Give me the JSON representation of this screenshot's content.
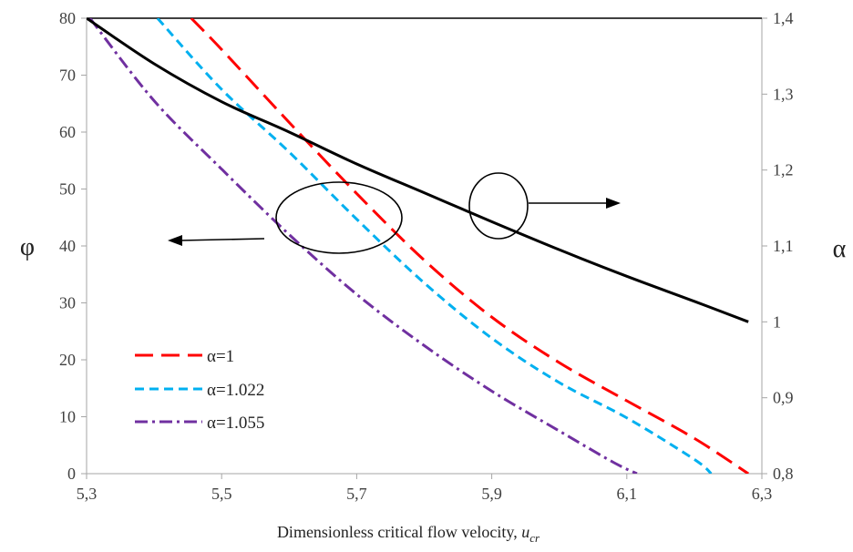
{
  "chart_data": {
    "type": "line",
    "xlabel_prefix": "Dimensionless critical flow velocity, ",
    "xlabel_var": "u",
    "xlabel_sub": "cr",
    "ylabel_left": "φ",
    "ylabel_right": "α",
    "xlim": [
      5.3,
      6.3
    ],
    "ylim_left": [
      0,
      80
    ],
    "ylim_right": [
      0.8,
      1.4
    ],
    "x_ticks": [
      "5,3",
      "5,5",
      "5,7",
      "5,9",
      "6,1",
      "6,3"
    ],
    "y_ticks_left": [
      "0",
      "10",
      "20",
      "30",
      "40",
      "50",
      "60",
      "70",
      "80"
    ],
    "y_ticks_right": [
      "0,8",
      "0,9",
      "1",
      "1,1",
      "1,2",
      "1,3",
      "1,4"
    ],
    "legend_position": "bottom-left",
    "series": [
      {
        "name": "α=1",
        "axis": "left",
        "color": "#ff0000",
        "dash": "long-dash",
        "points": [
          [
            5.455,
            80
          ],
          [
            5.5,
            74.5
          ],
          [
            5.6,
            61.7
          ],
          [
            5.7,
            49.2
          ],
          [
            5.8,
            37.5
          ],
          [
            5.9,
            27.5
          ],
          [
            6.0,
            19.5
          ],
          [
            6.1,
            12.8
          ],
          [
            6.2,
            6.2
          ],
          [
            6.28,
            0
          ]
        ]
      },
      {
        "name": "α=1.022",
        "axis": "left",
        "color": "#00b0f0",
        "dash": "short-dash",
        "points": [
          [
            5.405,
            80
          ],
          [
            5.5,
            67.5
          ],
          [
            5.6,
            56.5
          ],
          [
            5.7,
            44.7
          ],
          [
            5.8,
            33.5
          ],
          [
            5.9,
            23.8
          ],
          [
            6.0,
            16.0
          ],
          [
            6.1,
            9.8
          ],
          [
            6.2,
            2.5
          ],
          [
            6.225,
            0
          ]
        ]
      },
      {
        "name": "α=1.055",
        "axis": "left",
        "color": "#7030a0",
        "dash": "dash-dot",
        "points": [
          [
            5.305,
            80
          ],
          [
            5.4,
            65.5
          ],
          [
            5.5,
            53.5
          ],
          [
            5.6,
            42.0
          ],
          [
            5.7,
            31.5
          ],
          [
            5.8,
            22.5
          ],
          [
            5.9,
            14.5
          ],
          [
            6.0,
            7.5
          ],
          [
            6.08,
            2.0
          ],
          [
            6.115,
            0
          ]
        ]
      },
      {
        "name": "",
        "axis": "right",
        "color": "#000000",
        "dash": "solid",
        "points": [
          [
            5.3,
            1.4
          ],
          [
            5.4,
            1.34
          ],
          [
            5.5,
            1.29
          ],
          [
            5.6,
            1.25
          ],
          [
            5.7,
            1.208
          ],
          [
            5.8,
            1.17
          ],
          [
            5.9,
            1.132
          ],
          [
            6.0,
            1.095
          ],
          [
            6.1,
            1.06
          ],
          [
            6.2,
            1.027
          ],
          [
            6.28,
            1.0
          ]
        ]
      }
    ]
  }
}
